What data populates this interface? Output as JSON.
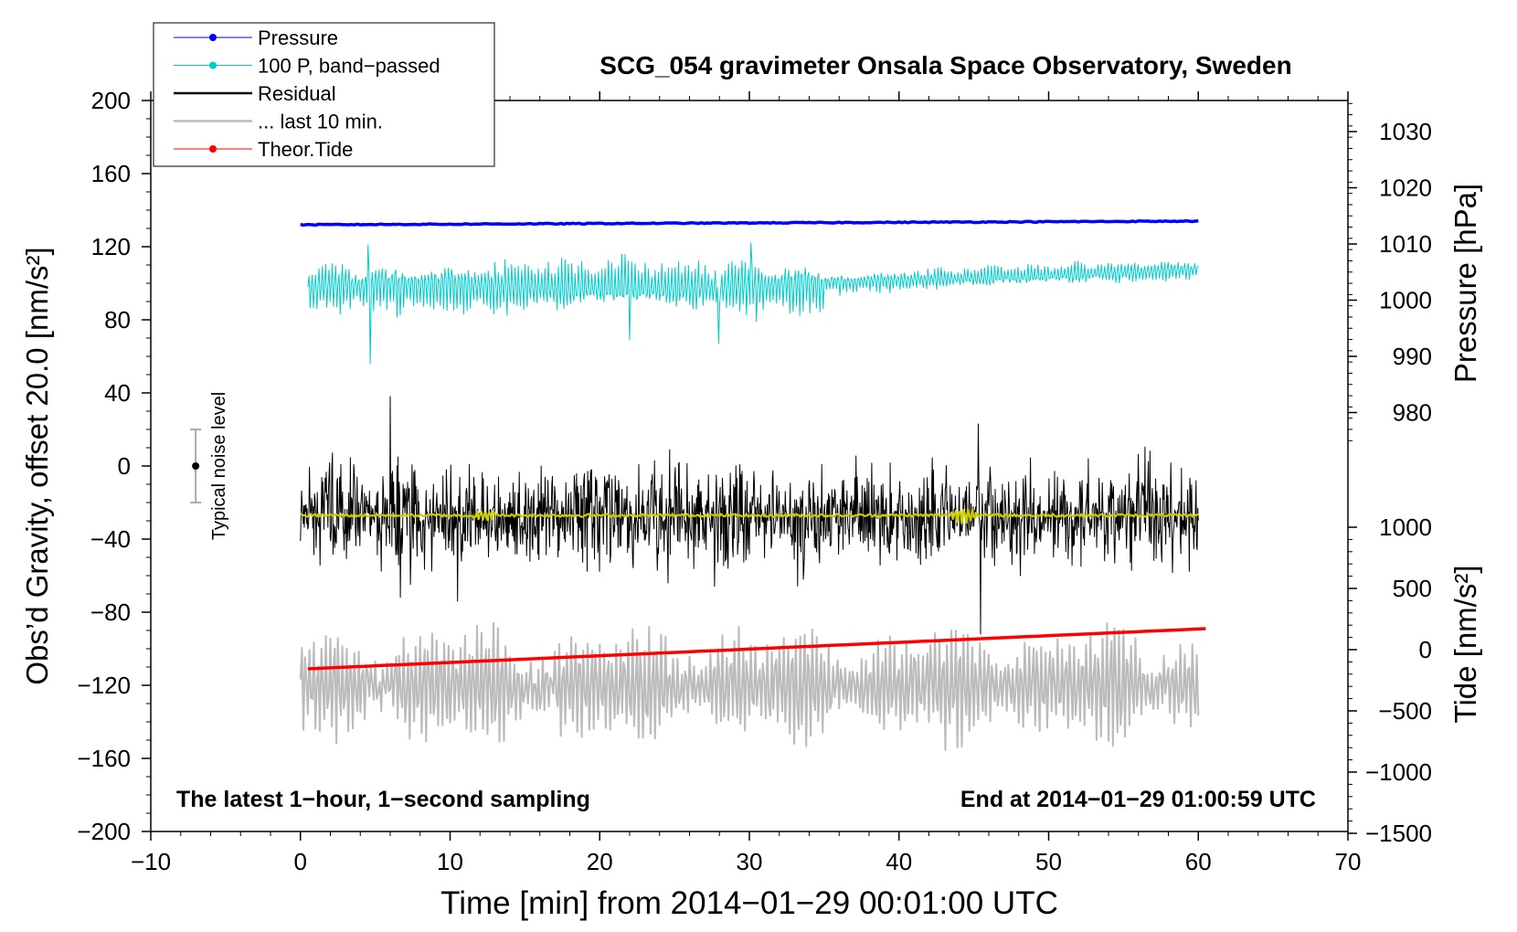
{
  "chart_data": {
    "type": "line",
    "title": "SCG_054 gravimeter Onsala Space Observatory, Sweden",
    "xlabel": "Time [min] from 2014−01−29 00:01:00 UTC",
    "ylabel_left": "Obs’d Gravity, offset 20.0 [nm/s²]",
    "ylabel_right_pressure": "Pressure [hPa]",
    "ylabel_right_tide": "Tide [nm/s²]",
    "note_left": "The latest 1−hour, 1−second sampling",
    "note_right": "End at 2014−01−29 01:00:59 UTC",
    "noise_label": "Typical noise level",
    "xlim": [
      -10,
      70
    ],
    "ylim_left": [
      -200,
      200
    ],
    "x_ticks": [
      "−10",
      "0",
      "10",
      "20",
      "30",
      "40",
      "50",
      "60",
      "70"
    ],
    "y_ticks_left": [
      "200",
      "160",
      "120",
      "80",
      "40",
      "0",
      "−40",
      "−80",
      "−120",
      "−160",
      "−200"
    ],
    "pressure_ticks": [
      "1030",
      "1020",
      "1010",
      "1000",
      "990",
      "980"
    ],
    "tide_ticks": [
      "1000",
      "500",
      "0",
      "−500",
      "−1000",
      "−1500"
    ],
    "pressure_axis": {
      "values": [
        1030,
        1020,
        1010,
        1000,
        990,
        980
      ]
    },
    "tide_axis": {
      "values": [
        1000,
        500,
        0,
        -500,
        -1000,
        -1500
      ]
    },
    "noise_bar": {
      "x": -7,
      "center": 0,
      "low": -20,
      "high": 20
    },
    "legend": [
      {
        "label": "Pressure",
        "color": "#0000ff",
        "marker": true
      },
      {
        "label": "100 P, band−passed",
        "color": "#00cccc",
        "marker": true
      },
      {
        "label": "Residual",
        "color": "#000000",
        "marker": false
      },
      {
        "label": "... last 10 min.",
        "color": "#bbbbbb",
        "marker": false
      },
      {
        "label": "Theor.Tide",
        "color": "#ff0000",
        "marker": true
      }
    ],
    "series": [
      {
        "name": "Pressure",
        "color": "#0000ff",
        "x_range": [
          0,
          60
        ],
        "y_range": [
          132,
          134
        ]
      },
      {
        "name": "100 P, band−passed",
        "color": "#00cccc",
        "x_range": [
          0,
          60
        ],
        "y_range": [
          56,
          121
        ],
        "mean": 100
      },
      {
        "name": "Residual",
        "color": "#000000",
        "x_range": [
          0,
          60
        ],
        "y_range": [
          -92,
          38
        ],
        "mean": -27
      },
      {
        "name": "Residual smoothed",
        "color": "#cccc00",
        "x_range": [
          0,
          60
        ],
        "y_range": [
          -30,
          -24
        ],
        "mean": -27
      },
      {
        "name": "... last 10 min.",
        "color": "#bbbbbb",
        "x_range": [
          0,
          60
        ],
        "y_range": [
          -173,
          -76
        ],
        "mean": -120
      },
      {
        "name": "Theor.Tide",
        "color": "#ff0000",
        "x_range": [
          0.5,
          60.5
        ],
        "y_range": [
          -111,
          -89
        ]
      }
    ]
  }
}
